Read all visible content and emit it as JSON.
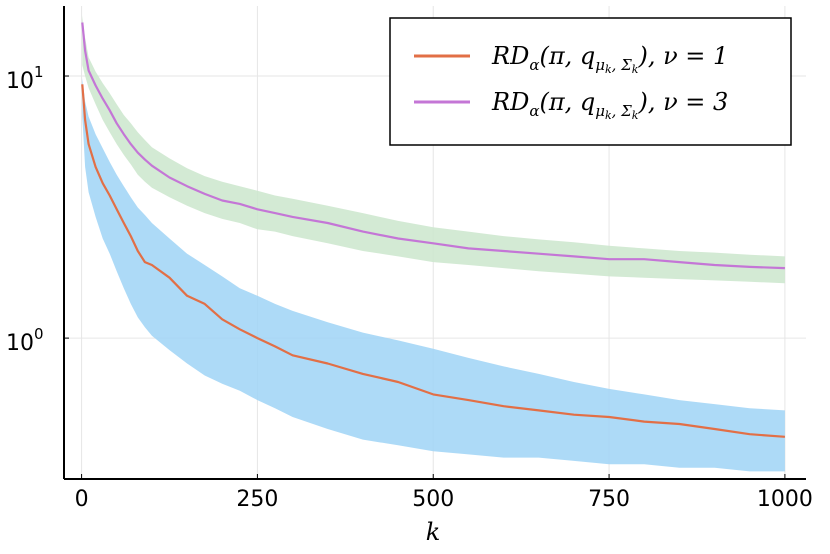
{
  "chart_data": {
    "type": "line",
    "title": "",
    "xlabel": "k",
    "ylabel": "",
    "yscale": "log",
    "xlim": [
      -25,
      1030
    ],
    "ylim": [
      0.29,
      18.5
    ],
    "x_ticks": [
      {
        "value": 0,
        "label": "0"
      },
      {
        "value": 250,
        "label": "250"
      },
      {
        "value": 500,
        "label": "500"
      },
      {
        "value": 750,
        "label": "750"
      },
      {
        "value": 1000,
        "label": "1000"
      }
    ],
    "y_ticks": [
      {
        "value": 1,
        "base": "10",
        "exp": "0"
      },
      {
        "value": 10,
        "base": "10",
        "exp": "1"
      }
    ],
    "grid": true,
    "legend_position": "top-right",
    "series": [
      {
        "name": "RDα(π, qμk, Σk), ν = 1",
        "legend": {
          "main": "RD",
          "alpha": "α",
          "args": "(π, q",
          "mu": "μ",
          "k1": "k",
          "sep": ", Σ",
          "k2": "k",
          "close": "), ν = 1"
        },
        "color": "#e26f46",
        "band_color": "#9fd3f6",
        "x": [
          1,
          5,
          10,
          20,
          30,
          40,
          50,
          60,
          70,
          80,
          90,
          100,
          125,
          150,
          175,
          200,
          225,
          250,
          275,
          300,
          350,
          400,
          450,
          500,
          550,
          600,
          650,
          700,
          750,
          800,
          850,
          900,
          950,
          1000
        ],
        "values": [
          9.3,
          6.8,
          5.5,
          4.5,
          3.9,
          3.5,
          3.1,
          2.75,
          2.45,
          2.15,
          1.95,
          1.9,
          1.7,
          1.45,
          1.35,
          1.18,
          1.08,
          1.0,
          0.93,
          0.86,
          0.8,
          0.73,
          0.68,
          0.61,
          0.58,
          0.55,
          0.53,
          0.51,
          0.5,
          0.48,
          0.47,
          0.45,
          0.43,
          0.42
        ],
        "lower": [
          7.0,
          4.5,
          3.6,
          2.9,
          2.4,
          2.1,
          1.8,
          1.55,
          1.35,
          1.2,
          1.1,
          1.02,
          0.9,
          0.8,
          0.72,
          0.67,
          0.63,
          0.58,
          0.54,
          0.5,
          0.45,
          0.41,
          0.39,
          0.37,
          0.36,
          0.35,
          0.35,
          0.34,
          0.33,
          0.33,
          0.32,
          0.32,
          0.31,
          0.31
        ],
        "upper": [
          9.8,
          8.0,
          7.0,
          6.0,
          5.3,
          4.7,
          4.2,
          3.8,
          3.45,
          3.15,
          2.95,
          2.75,
          2.4,
          2.1,
          1.9,
          1.72,
          1.55,
          1.45,
          1.35,
          1.27,
          1.15,
          1.05,
          0.98,
          0.91,
          0.84,
          0.78,
          0.73,
          0.68,
          0.64,
          0.61,
          0.58,
          0.56,
          0.54,
          0.53
        ]
      },
      {
        "name": "RDα(π, qμk, Σk), ν = 3",
        "legend": {
          "main": "RD",
          "alpha": "α",
          "args": "(π, q",
          "mu": "μ",
          "k1": "k",
          "sep": ", Σ",
          "k2": "k",
          "close": "), ν = 3"
        },
        "color": "#c476d6",
        "band_color": "#cbe6cd",
        "x": [
          1,
          5,
          10,
          20,
          30,
          40,
          50,
          60,
          70,
          80,
          90,
          100,
          125,
          150,
          175,
          200,
          225,
          250,
          275,
          300,
          350,
          400,
          450,
          500,
          550,
          600,
          650,
          700,
          750,
          800,
          850,
          900,
          950,
          1000
        ],
        "values": [
          16.0,
          12.5,
          10.5,
          9.2,
          8.2,
          7.4,
          6.6,
          6.0,
          5.5,
          5.1,
          4.8,
          4.55,
          4.1,
          3.8,
          3.55,
          3.35,
          3.25,
          3.1,
          3.0,
          2.9,
          2.75,
          2.55,
          2.4,
          2.3,
          2.2,
          2.15,
          2.1,
          2.05,
          2.0,
          2.0,
          1.95,
          1.9,
          1.87,
          1.85
        ],
        "lower": [
          11.0,
          10.0,
          9.0,
          7.8,
          6.8,
          6.1,
          5.5,
          5.0,
          4.6,
          4.2,
          3.95,
          3.75,
          3.45,
          3.2,
          3.0,
          2.85,
          2.75,
          2.6,
          2.55,
          2.45,
          2.3,
          2.15,
          2.05,
          1.95,
          1.9,
          1.85,
          1.8,
          1.76,
          1.72,
          1.7,
          1.68,
          1.66,
          1.64,
          1.62
        ],
        "upper": [
          17.0,
          14.0,
          11.8,
          10.4,
          9.4,
          8.6,
          7.8,
          7.1,
          6.6,
          6.1,
          5.7,
          5.35,
          4.85,
          4.45,
          4.15,
          3.95,
          3.8,
          3.65,
          3.5,
          3.4,
          3.2,
          3.0,
          2.8,
          2.65,
          2.55,
          2.45,
          2.38,
          2.32,
          2.25,
          2.2,
          2.15,
          2.12,
          2.08,
          2.05
        ]
      }
    ]
  }
}
